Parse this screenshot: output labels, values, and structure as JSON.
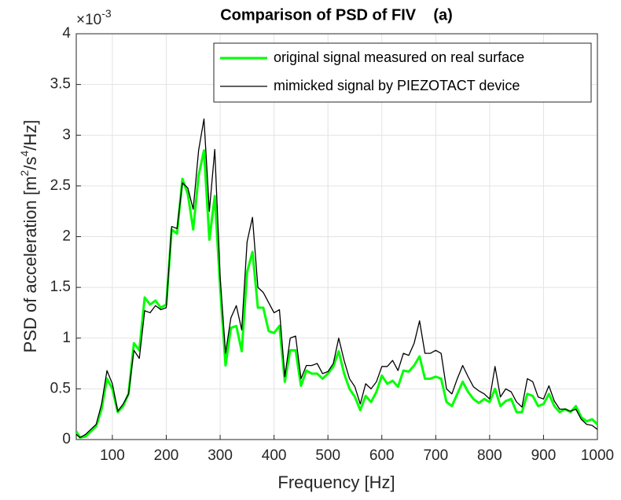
{
  "chart_data": {
    "type": "line",
    "title": "Comparison of PSD of FIV    (a)",
    "x_label": "Frequency [Hz]",
    "y_label_parts": [
      "PSD of acceleration [m",
      "2",
      "/s",
      "4",
      "/Hz]"
    ],
    "y_exponent_parts": [
      "×10",
      "-3"
    ],
    "x": [
      33,
      40,
      50,
      60,
      70,
      80,
      90,
      100,
      110,
      120,
      130,
      140,
      150,
      160,
      170,
      180,
      190,
      200,
      210,
      220,
      230,
      240,
      250,
      260,
      270,
      280,
      290,
      300,
      310,
      320,
      330,
      340,
      350,
      360,
      370,
      380,
      390,
      400,
      410,
      420,
      430,
      440,
      450,
      460,
      470,
      480,
      490,
      500,
      510,
      520,
      530,
      540,
      550,
      560,
      570,
      580,
      590,
      600,
      610,
      620,
      630,
      640,
      650,
      660,
      670,
      680,
      690,
      700,
      710,
      720,
      730,
      740,
      750,
      760,
      770,
      780,
      790,
      800,
      810,
      820,
      830,
      840,
      850,
      860,
      870,
      880,
      890,
      900,
      910,
      920,
      930,
      940,
      950,
      960,
      970,
      980,
      990,
      1000
    ],
    "series": [
      {
        "name": "original signal measured on real surface",
        "color": "#00ff00",
        "width": 3,
        "values": [
          0.08,
          0.02,
          0.03,
          0.08,
          0.13,
          0.3,
          0.6,
          0.5,
          0.27,
          0.33,
          0.45,
          0.95,
          0.88,
          1.4,
          1.33,
          1.37,
          1.3,
          1.33,
          2.07,
          2.03,
          2.57,
          2.42,
          2.07,
          2.6,
          2.85,
          1.97,
          2.4,
          1.5,
          0.73,
          1.1,
          1.12,
          0.87,
          1.65,
          1.85,
          1.3,
          1.3,
          1.07,
          1.05,
          1.12,
          0.57,
          0.88,
          0.88,
          0.53,
          0.68,
          0.65,
          0.65,
          0.6,
          0.65,
          0.72,
          0.87,
          0.65,
          0.5,
          0.42,
          0.29,
          0.43,
          0.37,
          0.47,
          0.63,
          0.55,
          0.58,
          0.52,
          0.68,
          0.67,
          0.73,
          0.82,
          0.6,
          0.6,
          0.62,
          0.6,
          0.37,
          0.33,
          0.45,
          0.57,
          0.47,
          0.4,
          0.36,
          0.4,
          0.37,
          0.5,
          0.33,
          0.38,
          0.4,
          0.27,
          0.27,
          0.45,
          0.43,
          0.33,
          0.35,
          0.45,
          0.33,
          0.27,
          0.3,
          0.27,
          0.33,
          0.22,
          0.18,
          0.2,
          0.15
        ]
      },
      {
        "name": "mimicked signal by PIEZOTACT device",
        "color": "#000000",
        "width": 1.3,
        "values": [
          0.05,
          0.02,
          0.05,
          0.1,
          0.15,
          0.35,
          0.68,
          0.55,
          0.28,
          0.35,
          0.45,
          0.88,
          0.8,
          1.27,
          1.25,
          1.32,
          1.28,
          1.3,
          2.1,
          2.08,
          2.53,
          2.48,
          2.27,
          2.85,
          3.16,
          2.25,
          2.86,
          1.6,
          0.85,
          1.2,
          1.32,
          1.08,
          1.95,
          2.19,
          1.5,
          1.45,
          1.35,
          1.25,
          1.28,
          0.62,
          1.0,
          1.02,
          0.6,
          0.73,
          0.73,
          0.75,
          0.65,
          0.67,
          0.75,
          1.0,
          0.78,
          0.6,
          0.52,
          0.35,
          0.55,
          0.5,
          0.57,
          0.72,
          0.72,
          0.78,
          0.68,
          0.85,
          0.83,
          0.95,
          1.17,
          0.85,
          0.85,
          0.88,
          0.85,
          0.5,
          0.45,
          0.6,
          0.73,
          0.62,
          0.52,
          0.48,
          0.45,
          0.4,
          0.72,
          0.42,
          0.5,
          0.47,
          0.37,
          0.32,
          0.6,
          0.57,
          0.42,
          0.4,
          0.53,
          0.38,
          0.3,
          0.3,
          0.28,
          0.3,
          0.2,
          0.15,
          0.14,
          0.1
        ]
      }
    ],
    "xlim": [
      33,
      1000
    ],
    "xticks": [
      100,
      200,
      300,
      400,
      500,
      600,
      700,
      800,
      900,
      1000
    ],
    "ylim": [
      0,
      4
    ],
    "yticks": [
      0,
      0.5,
      1,
      1.5,
      2,
      2.5,
      3,
      3.5,
      4
    ],
    "grid": true,
    "legend": "top-right"
  }
}
